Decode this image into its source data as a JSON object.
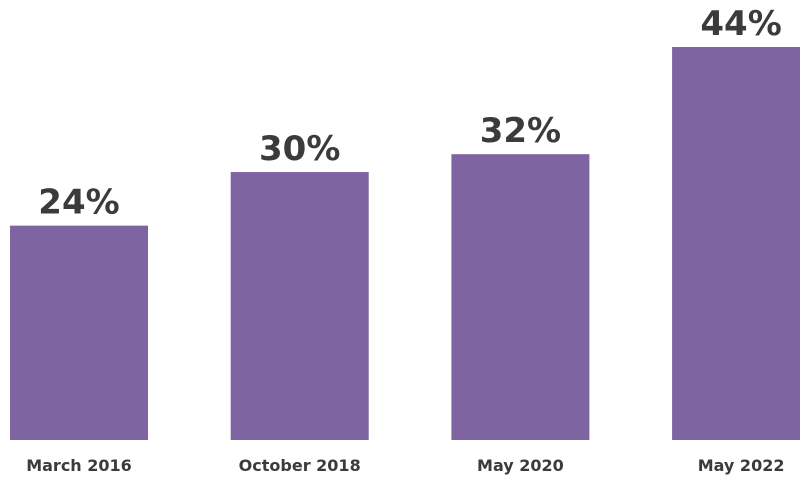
{
  "chart_data": {
    "type": "bar",
    "categories": [
      "March 2016",
      "October 2018",
      "May 2020",
      "May 2022"
    ],
    "values": [
      24,
      30,
      32,
      44
    ],
    "value_labels": [
      "24%",
      "30%",
      "32%",
      "44%"
    ],
    "title": "",
    "xlabel": "",
    "ylabel": "",
    "ylim": [
      0,
      44
    ],
    "grid": false,
    "bar_color": "#7e64a0",
    "text_color": "#3b3b3b"
  }
}
